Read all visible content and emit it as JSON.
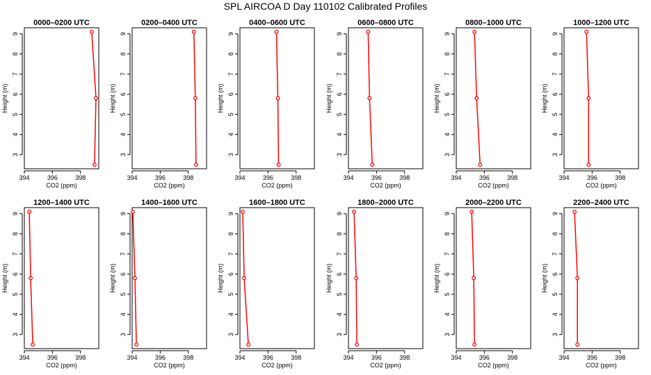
{
  "figure": {
    "title": "SPL AIRCOA D  Day 110102  Calibrated Profiles"
  },
  "style": {
    "series_color": "#ff0000",
    "axis_color": "#000000"
  },
  "chart_data": [
    {
      "type": "line",
      "title": "0000–0200 UTC",
      "xlabel": "CO2 (ppm)",
      "ylabel": "Height (m)",
      "xlim": [
        394,
        399.3
      ],
      "ylim": [
        2.3,
        9.3
      ],
      "xticks": [
        394,
        396,
        398
      ],
      "yticks": [
        3,
        4,
        5,
        6,
        7,
        8,
        9
      ],
      "grid": false,
      "series": [
        {
          "x": [
            398.8,
            399.1,
            399.0
          ],
          "y": [
            9.1,
            5.8,
            2.5
          ]
        }
      ]
    },
    {
      "type": "line",
      "title": "0200–0400 UTC",
      "xlabel": "CO2 (ppm)",
      "ylabel": "Height (m)",
      "xlim": [
        394,
        399.3
      ],
      "ylim": [
        2.3,
        9.3
      ],
      "xticks": [
        394,
        396,
        398
      ],
      "yticks": [
        3,
        4,
        5,
        6,
        7,
        8,
        9
      ],
      "grid": false,
      "series": [
        {
          "x": [
            398.4,
            398.5,
            398.55
          ],
          "y": [
            9.1,
            5.8,
            2.5
          ]
        }
      ]
    },
    {
      "type": "line",
      "title": "0400–0600 UTC",
      "xlabel": "CO2 (ppm)",
      "ylabel": "Height (m)",
      "xlim": [
        394,
        399.3
      ],
      "ylim": [
        2.3,
        9.3
      ],
      "xticks": [
        394,
        396,
        398
      ],
      "yticks": [
        3,
        4,
        5,
        6,
        7,
        8,
        9
      ],
      "grid": false,
      "series": [
        {
          "x": [
            396.6,
            396.7,
            396.75
          ],
          "y": [
            9.1,
            5.8,
            2.5
          ]
        }
      ]
    },
    {
      "type": "line",
      "title": "0600–0800 UTC",
      "xlabel": "CO2 (ppm)",
      "ylabel": "Height (m)",
      "xlim": [
        394,
        399.3
      ],
      "ylim": [
        2.3,
        9.3
      ],
      "xticks": [
        394,
        396,
        398
      ],
      "yticks": [
        3,
        4,
        5,
        6,
        7,
        8,
        9
      ],
      "grid": false,
      "series": [
        {
          "x": [
            395.4,
            395.5,
            395.7
          ],
          "y": [
            9.1,
            5.8,
            2.5
          ]
        }
      ]
    },
    {
      "type": "line",
      "title": "0800–1000 UTC",
      "xlabel": "CO2 (ppm)",
      "ylabel": "Height (m)",
      "xlim": [
        394,
        399.3
      ],
      "ylim": [
        2.3,
        9.3
      ],
      "xticks": [
        394,
        396,
        398
      ],
      "yticks": [
        3,
        4,
        5,
        6,
        7,
        8,
        9
      ],
      "grid": false,
      "series": [
        {
          "x": [
            395.3,
            395.45,
            395.7
          ],
          "y": [
            9.1,
            5.8,
            2.5
          ]
        }
      ]
    },
    {
      "type": "line",
      "title": "1000–1200 UTC",
      "xlabel": "CO2 (ppm)",
      "ylabel": "Height (m)",
      "xlim": [
        394,
        399.3
      ],
      "ylim": [
        2.3,
        9.3
      ],
      "xticks": [
        394,
        396,
        398
      ],
      "yticks": [
        3,
        4,
        5,
        6,
        7,
        8,
        9
      ],
      "grid": false,
      "series": [
        {
          "x": [
            395.6,
            395.75,
            395.75
          ],
          "y": [
            9.1,
            5.8,
            2.5
          ]
        }
      ]
    },
    {
      "type": "line",
      "title": "1200–1400 UTC",
      "xlabel": "CO2 (ppm)",
      "ylabel": "Height (m)",
      "xlim": [
        394,
        399.3
      ],
      "ylim": [
        2.3,
        9.3
      ],
      "xticks": [
        394,
        396,
        398
      ],
      "yticks": [
        3,
        4,
        5,
        6,
        7,
        8,
        9
      ],
      "grid": false,
      "series": [
        {
          "x": [
            394.35,
            394.45,
            394.6
          ],
          "y": [
            9.1,
            5.8,
            2.5
          ]
        }
      ]
    },
    {
      "type": "line",
      "title": "1400–1600 UTC",
      "xlabel": "CO2 (ppm)",
      "ylabel": "Height (m)",
      "xlim": [
        394,
        399.3
      ],
      "ylim": [
        2.3,
        9.3
      ],
      "xticks": [
        394,
        396,
        398
      ],
      "yticks": [
        3,
        4,
        5,
        6,
        7,
        8,
        9
      ],
      "grid": false,
      "series": [
        {
          "x": [
            394.05,
            394.2,
            394.3
          ],
          "y": [
            9.1,
            5.8,
            2.5
          ]
        }
      ]
    },
    {
      "type": "line",
      "title": "1600–1800 UTC",
      "xlabel": "CO2 (ppm)",
      "ylabel": "Height (m)",
      "xlim": [
        394,
        399.3
      ],
      "ylim": [
        2.3,
        9.3
      ],
      "xticks": [
        394,
        396,
        398
      ],
      "yticks": [
        3,
        4,
        5,
        6,
        7,
        8,
        9
      ],
      "grid": false,
      "series": [
        {
          "x": [
            394.2,
            394.3,
            394.6
          ],
          "y": [
            9.1,
            5.8,
            2.5
          ]
        }
      ]
    },
    {
      "type": "line",
      "title": "1800–2000 UTC",
      "xlabel": "CO2 (ppm)",
      "ylabel": "Height (m)",
      "xlim": [
        394,
        399.3
      ],
      "ylim": [
        2.3,
        9.3
      ],
      "xticks": [
        394,
        396,
        398
      ],
      "yticks": [
        3,
        4,
        5,
        6,
        7,
        8,
        9
      ],
      "grid": false,
      "series": [
        {
          "x": [
            394.4,
            394.55,
            394.6
          ],
          "y": [
            9.1,
            5.8,
            2.5
          ]
        }
      ]
    },
    {
      "type": "line",
      "title": "2000–2200 UTC",
      "xlabel": "CO2 (ppm)",
      "ylabel": "Height (m)",
      "xlim": [
        394,
        399.3
      ],
      "ylim": [
        2.3,
        9.3
      ],
      "xticks": [
        394,
        396,
        398
      ],
      "yticks": [
        3,
        4,
        5,
        6,
        7,
        8,
        9
      ],
      "grid": false,
      "series": [
        {
          "x": [
            395.1,
            395.25,
            395.3
          ],
          "y": [
            9.1,
            5.8,
            2.5
          ]
        }
      ]
    },
    {
      "type": "line",
      "title": "2200–2400 UTC",
      "xlabel": "CO2 (ppm)",
      "ylabel": "Height (m)",
      "xlim": [
        394,
        399.3
      ],
      "ylim": [
        2.3,
        9.3
      ],
      "xticks": [
        394,
        396,
        398
      ],
      "yticks": [
        3,
        4,
        5,
        6,
        7,
        8,
        9
      ],
      "grid": false,
      "series": [
        {
          "x": [
            394.75,
            394.95,
            394.95
          ],
          "y": [
            9.1,
            5.8,
            2.5
          ]
        }
      ]
    }
  ]
}
